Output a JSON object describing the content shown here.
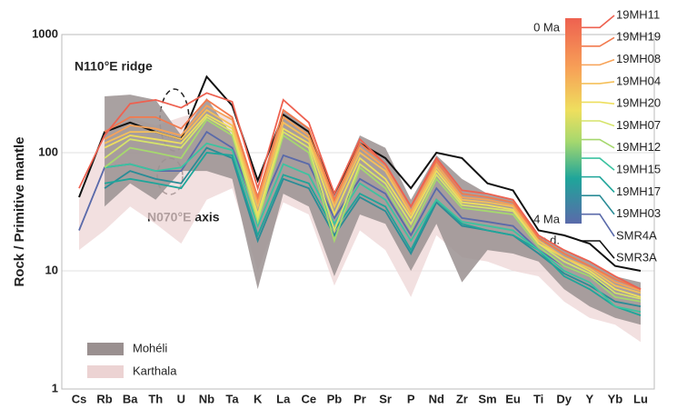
{
  "chart_data": {
    "type": "line",
    "ylabel": "Rock / Primitive mantle",
    "log_scale": true,
    "grid": true,
    "ylim": [
      1,
      1000
    ],
    "yticks": [
      1,
      10,
      100,
      1000
    ],
    "categories": [
      "Cs",
      "Rb",
      "Ba",
      "Th",
      "U",
      "Nb",
      "Ta",
      "K",
      "La",
      "Ce",
      "Pb",
      "Pr",
      "Sr",
      "P",
      "Nd",
      "Zr",
      "Sm",
      "Eu",
      "Ti",
      "Dy",
      "Y",
      "Yb",
      "Lu"
    ],
    "bands": [
      {
        "name": "Mohéli",
        "color": "#9a9090",
        "high": [
          null,
          300,
          310,
          280,
          140,
          290,
          140,
          45,
          230,
          160,
          45,
          140,
          110,
          40,
          95,
          60,
          45,
          40,
          20,
          15,
          12,
          9,
          8
        ],
        "low": [
          null,
          35,
          55,
          40,
          70,
          70,
          60,
          7,
          45,
          35,
          9,
          30,
          25,
          10,
          25,
          8,
          15,
          14,
          12,
          7,
          5,
          4,
          3.5
        ]
      },
      {
        "name": "Karthala",
        "color": "#ecd3d3",
        "high": [
          40,
          140,
          200,
          170,
          200,
          230,
          200,
          40,
          200,
          150,
          40,
          120,
          80,
          35,
          90,
          45,
          42,
          38,
          20,
          14,
          11,
          8,
          7
        ],
        "low": [
          15,
          22,
          35,
          25,
          17,
          40,
          50,
          10,
          38,
          30,
          7.5,
          22,
          15,
          6,
          20,
          13,
          12,
          10,
          9,
          5.5,
          4,
          3.5,
          2.5
        ]
      }
    ],
    "series": [
      {
        "name": "19MH11",
        "color": "#ee6150",
        "values": [
          50,
          140,
          260,
          280,
          240,
          320,
          270,
          50,
          280,
          180,
          45,
          130,
          80,
          35,
          90,
          48,
          45,
          40,
          20,
          15,
          12,
          9,
          7
        ]
      },
      {
        "name": "19MH19",
        "color": "#f27a4e",
        "values": [
          null,
          150,
          200,
          200,
          160,
          280,
          200,
          42,
          230,
          160,
          40,
          120,
          80,
          35,
          85,
          45,
          42,
          38,
          19,
          14,
          11,
          8.5,
          7
        ]
      },
      {
        "name": "19MH08",
        "color": "#f7a257",
        "values": [
          null,
          130,
          170,
          160,
          140,
          250,
          190,
          38,
          200,
          140,
          38,
          110,
          75,
          32,
          80,
          42,
          40,
          36,
          19,
          14,
          11,
          8,
          6.8
        ]
      },
      {
        "name": "19MH04",
        "color": "#f5c05a",
        "values": [
          null,
          120,
          150,
          150,
          130,
          230,
          170,
          35,
          180,
          130,
          35,
          100,
          70,
          30,
          75,
          40,
          38,
          35,
          18,
          13,
          10.5,
          7.5,
          6.5
        ]
      },
      {
        "name": "19MH20",
        "color": "#eedf5e",
        "values": [
          null,
          110,
          140,
          130,
          120,
          210,
          160,
          30,
          160,
          120,
          30,
          90,
          60,
          28,
          70,
          38,
          36,
          33,
          17,
          13,
          10,
          7,
          6
        ]
      },
      {
        "name": "19MH07",
        "color": "#d6e46a",
        "values": [
          null,
          90,
          130,
          120,
          110,
          200,
          150,
          28,
          150,
          110,
          22,
          80,
          55,
          25,
          65,
          36,
          34,
          32,
          17,
          12,
          9.5,
          6.5,
          5.8
        ]
      },
      {
        "name": "19MH12",
        "color": "#a6d86e",
        "values": [
          null,
          75,
          110,
          100,
          90,
          190,
          140,
          26,
          140,
          100,
          18,
          75,
          50,
          22,
          60,
          34,
          32,
          30,
          16,
          11,
          9,
          6,
          5.5
        ]
      },
      {
        "name": "19MH15",
        "color": "#3cc3a0",
        "values": [
          null,
          75,
          80,
          70,
          75,
          120,
          105,
          24,
          80,
          65,
          25,
          55,
          40,
          18,
          40,
          26,
          24,
          22,
          15,
          10,
          8,
          5,
          4.5
        ]
      },
      {
        "name": "19MH17",
        "color": "#1fa59a",
        "values": [
          null,
          55,
          60,
          55,
          50,
          100,
          95,
          20,
          65,
          55,
          22,
          45,
          35,
          15,
          40,
          25,
          22,
          20,
          15,
          9,
          7,
          5,
          4.2
        ]
      },
      {
        "name": "19MH03",
        "color": "#2a8c96",
        "values": [
          null,
          50,
          70,
          60,
          55,
          110,
          90,
          18,
          60,
          50,
          20,
          42,
          32,
          14,
          38,
          24,
          22,
          20,
          14,
          9.5,
          7.5,
          5.5,
          5
        ]
      },
      {
        "name": "SMR4A",
        "color": "#5a6aaa",
        "values": [
          22,
          75,
          80,
          70,
          70,
          150,
          110,
          30,
          95,
          80,
          28,
          60,
          45,
          20,
          50,
          28,
          26,
          24,
          15,
          11,
          9,
          6.5,
          5.8
        ]
      },
      {
        "name": "SMR3A",
        "color": "#111111",
        "values": [
          42,
          150,
          180,
          150,
          130,
          440,
          250,
          58,
          210,
          150,
          45,
          120,
          90,
          50,
          100,
          90,
          55,
          48,
          22,
          20,
          17,
          11,
          10
        ]
      }
    ],
    "annotations": [
      "N110°E ridge",
      "N070°E axis"
    ],
    "colorbar_labels": [
      "0 Ma",
      "4 Ma",
      "n.d."
    ]
  }
}
